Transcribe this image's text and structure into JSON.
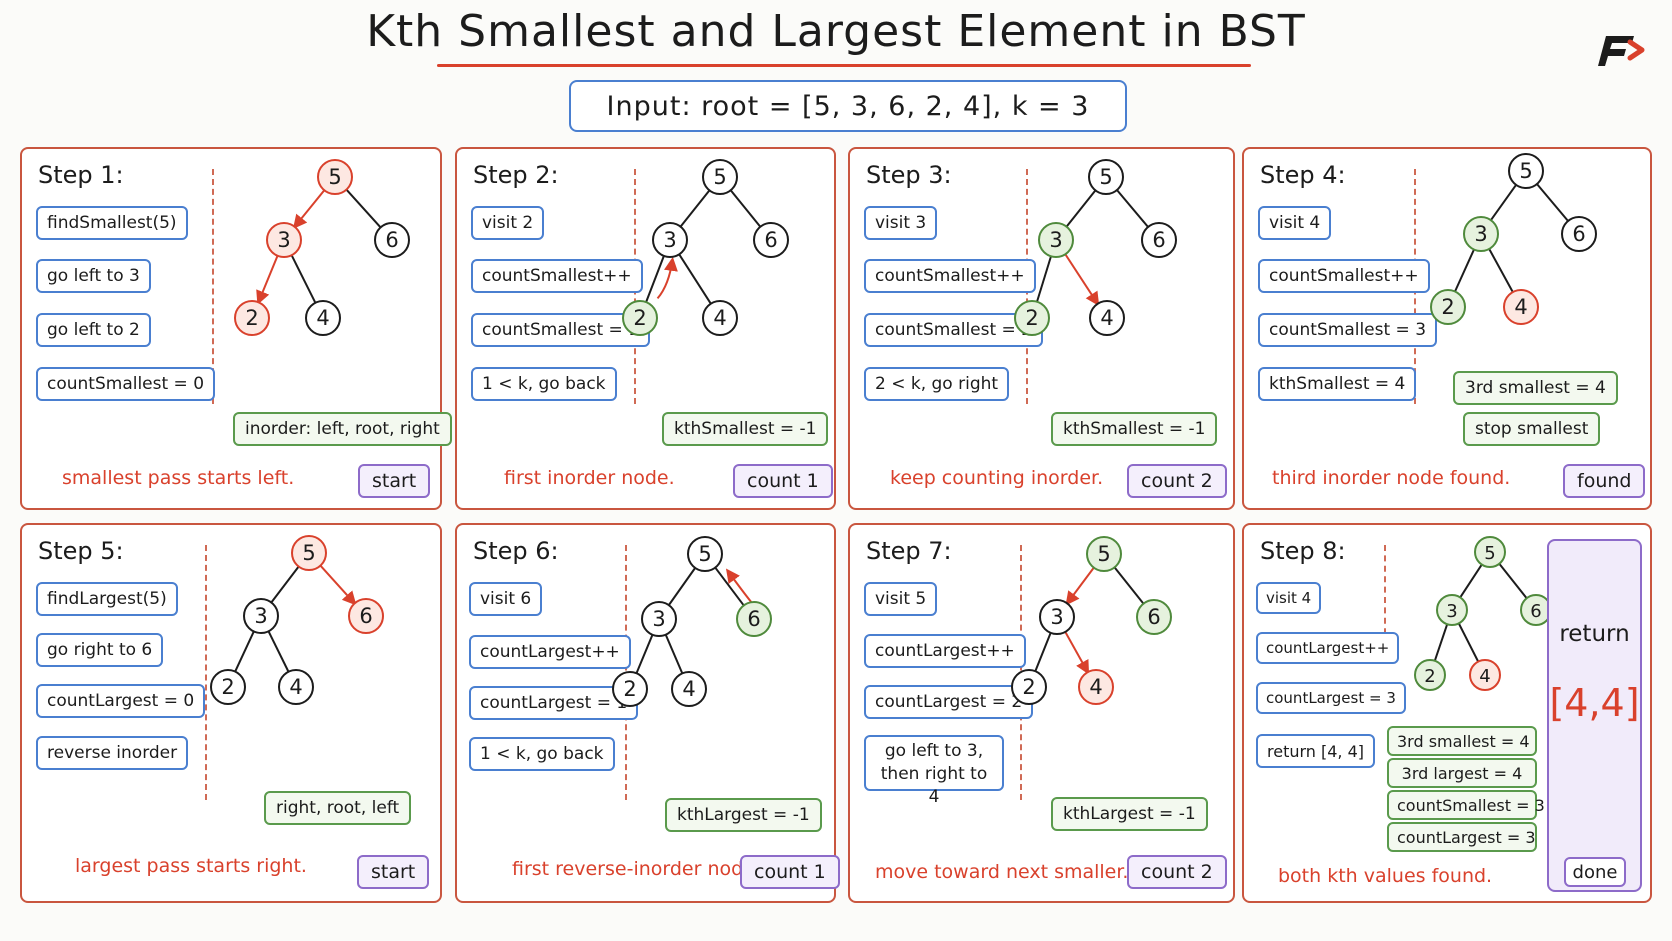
{
  "title": "Kth Smallest and Largest Element in BST",
  "input": "Input:  root = [5, 3, 6, 2, 4], k = 3",
  "colors": {
    "accent_red": "#d9412c",
    "node_green": "#4f8a3c",
    "op_blue": "#4a7fd0",
    "status_purple": "#8d6bc9",
    "panel_border": "#c9563f"
  },
  "tree_values": {
    "root": "5",
    "left": "3",
    "right": "6",
    "left_left": "2",
    "left_right": "4"
  },
  "steps": [
    {
      "title": "Step 1:",
      "ops": [
        "findSmallest(5)",
        "go left to 3",
        "go left to 2",
        "countSmallest = 0"
      ],
      "notes": [
        "inorder: left, root, right"
      ],
      "caption": "smallest pass starts left.",
      "status": "start"
    },
    {
      "title": "Step 2:",
      "ops": [
        "visit 2",
        "countSmallest++",
        "countSmallest = 1",
        "1 < k, go back"
      ],
      "notes": [
        "kthSmallest = -1"
      ],
      "caption": "first inorder node.",
      "status": "count 1"
    },
    {
      "title": "Step 3:",
      "ops": [
        "visit 3",
        "countSmallest++",
        "countSmallest = 2",
        "2 < k, go right"
      ],
      "notes": [
        "kthSmallest = -1"
      ],
      "caption": "keep counting inorder.",
      "status": "count 2"
    },
    {
      "title": "Step 4:",
      "ops": [
        "visit 4",
        "countSmallest++",
        "countSmallest = 3",
        "kthSmallest = 4"
      ],
      "notes": [
        "3rd smallest = 4",
        "stop smallest"
      ],
      "caption": "third inorder node found.",
      "status": "found"
    },
    {
      "title": "Step 5:",
      "ops": [
        "findLargest(5)",
        "go right to 6",
        "countLargest = 0",
        "reverse inorder"
      ],
      "notes": [
        "right, root, left"
      ],
      "caption": "largest pass starts right.",
      "status": "start"
    },
    {
      "title": "Step 6:",
      "ops": [
        "visit 6",
        "countLargest++",
        "countLargest = 1",
        "1 < k, go back"
      ],
      "notes": [
        "kthLargest = -1"
      ],
      "caption": "first reverse-inorder node.",
      "status": "count 1"
    },
    {
      "title": "Step 7:",
      "ops": [
        "visit 5",
        "countLargest++",
        "countLargest = 2",
        "go left to 3, then right to 4"
      ],
      "notes": [
        "kthLargest = -1"
      ],
      "caption": "move toward next smaller.",
      "status": "count 2"
    },
    {
      "title": "Step 8:",
      "ops": [
        "visit 4",
        "countLargest++",
        "countLargest = 3",
        "return [4, 4]"
      ],
      "notes": [
        "3rd smallest = 4",
        "3rd largest = 4",
        "countSmallest = 3",
        "countLargest = 3"
      ],
      "caption": "both kth values found.",
      "status": "done"
    }
  ],
  "return_panel": {
    "label": "return",
    "value": "[4,4]"
  }
}
